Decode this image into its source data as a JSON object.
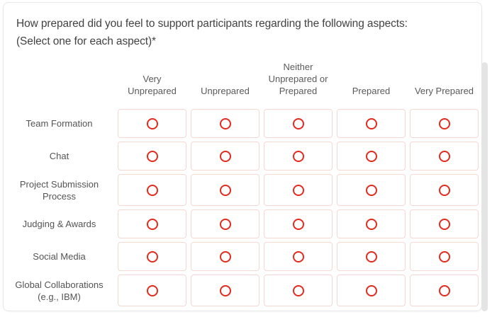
{
  "question": {
    "title_line1": "How prepared did you feel to support participants regarding the following aspects:",
    "title_line2": "(Select one for each aspect)*"
  },
  "matrix": {
    "column_headers": [
      "Very Unprepared",
      "Unprepared",
      "Neither Unprepared or Prepared",
      "Prepared",
      "Very Prepared"
    ],
    "row_labels": [
      "Team Formation",
      "Chat",
      "Project Submission Process",
      "Judging & Awards",
      "Social Media",
      "Global Collaborations (e.g., IBM)"
    ],
    "radio_state": "all-unselected"
  },
  "icons": {
    "radio": "radio-unselected-icon"
  },
  "colors": {
    "radio_red": "#e12b1e",
    "cell_border": "#f6d8d2",
    "title_text": "#424242",
    "label_text": "#545454"
  }
}
